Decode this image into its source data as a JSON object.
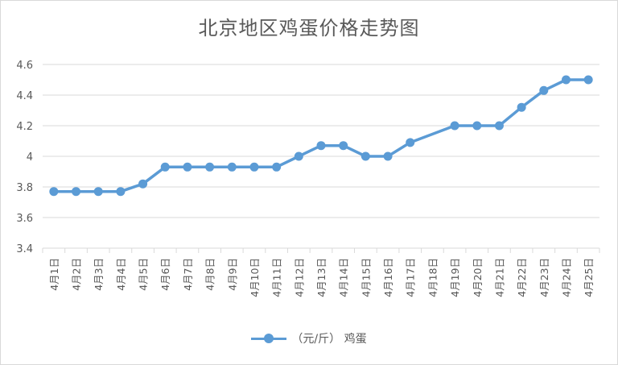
{
  "chart_data": {
    "type": "line",
    "title": "北京地区鸡蛋价格走势图",
    "categories": [
      "4月1日",
      "4月2日",
      "4月3日",
      "4月4日",
      "4月5日",
      "4月6日",
      "4月7日",
      "4月8日",
      "4月9日",
      "4月10日",
      "4月11日",
      "4月12日",
      "4月13日",
      "4月14日",
      "4月15日",
      "4月16日",
      "4月17日",
      "4月18日",
      "4月19日",
      "4月20日",
      "4月21日",
      "4月22日",
      "4月23日",
      "4月24日",
      "4月25日"
    ],
    "series": [
      {
        "name": "（元/斤） 鸡蛋",
        "color": "#5b9bd5",
        "values": [
          3.77,
          3.77,
          3.77,
          3.77,
          3.82,
          3.93,
          3.93,
          3.93,
          3.93,
          3.93,
          3.93,
          4.0,
          4.07,
          4.07,
          4.0,
          4.0,
          4.09,
          null,
          4.2,
          4.2,
          4.2,
          4.32,
          4.43,
          4.5,
          4.5
        ]
      }
    ],
    "ylim": [
      3.4,
      4.6
    ],
    "yticks": [
      "3.4",
      "3.6",
      "3.8",
      "4",
      "4.2",
      "4.4",
      "4.6"
    ],
    "grid": true,
    "legend": "bottom"
  }
}
